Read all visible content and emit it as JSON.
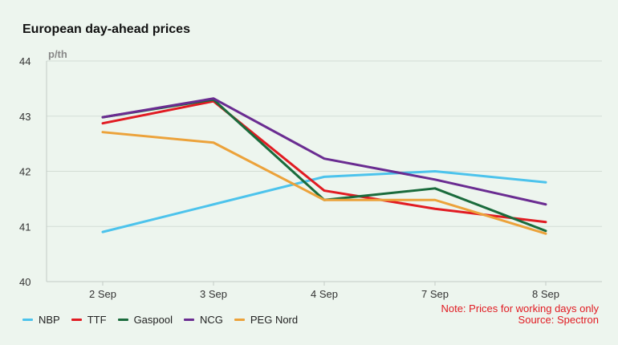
{
  "title": "European day-ahead prices",
  "unit": "p/th",
  "notes": {
    "note": "Note: Prices for working days only",
    "source": "Source: Spectron"
  },
  "chart_data": {
    "type": "line",
    "title": "European day-ahead prices",
    "ylabel": "p/th",
    "categories": [
      "2 Sep",
      "3 Sep",
      "4 Sep",
      "7 Sep",
      "8 Sep"
    ],
    "ylim": [
      40,
      44
    ],
    "yticks": [
      40,
      41,
      42,
      43,
      44
    ],
    "grid": true,
    "legend_position": "bottom-left",
    "series": [
      {
        "name": "NBP",
        "color": "#4cc3ec",
        "values": [
          40.9,
          41.4,
          41.9,
          42.0,
          41.8
        ]
      },
      {
        "name": "TTF",
        "color": "#e11b22",
        "values": [
          42.87,
          43.27,
          41.65,
          41.32,
          41.08
        ]
      },
      {
        "name": "Gaspool",
        "color": "#1a6b3c",
        "values": [
          42.98,
          43.3,
          41.48,
          41.69,
          40.92
        ]
      },
      {
        "name": "NCG",
        "color": "#6a2c91",
        "values": [
          42.98,
          43.32,
          42.23,
          41.85,
          41.4
        ]
      },
      {
        "name": "PEG Nord",
        "color": "#eca23a",
        "values": [
          42.71,
          42.52,
          41.48,
          41.48,
          40.87
        ]
      }
    ]
  }
}
